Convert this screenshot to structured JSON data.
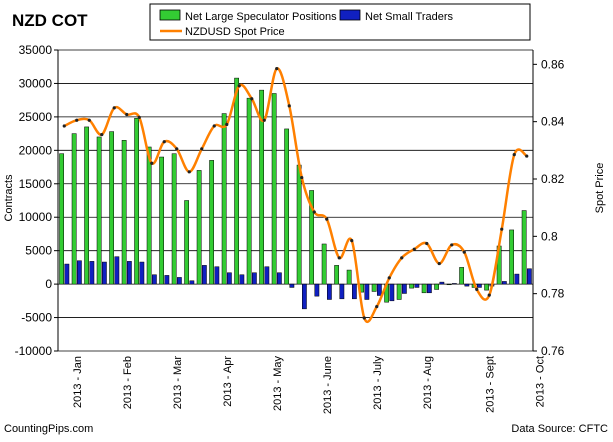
{
  "chart_data": {
    "type": "bar",
    "title": "NZD COT",
    "ylabel_left": "Contracts",
    "ylabel_right": "Spot Price",
    "left_axis": {
      "min": -10000,
      "max": 35000,
      "ticks": [
        "-10000",
        "-5000",
        "0",
        "5000",
        "10000",
        "15000",
        "20000",
        "25000",
        "30000",
        "35000"
      ]
    },
    "right_axis": {
      "min": 0.76,
      "max": 0.865,
      "ticks": [
        "0.76",
        "0.78",
        "0.8",
        "0.82",
        "0.84",
        "0.86"
      ]
    },
    "x_labels": [
      {
        "label": "2013 - Jan",
        "index": 1
      },
      {
        "label": "2013 - Feb",
        "index": 5
      },
      {
        "label": "2013 - Mar",
        "index": 9
      },
      {
        "label": "2013 - Apr",
        "index": 13
      },
      {
        "label": "2013 - May",
        "index": 17
      },
      {
        "label": "2013 - June",
        "index": 21
      },
      {
        "label": "2013 - July",
        "index": 25
      },
      {
        "label": "2013 - Aug",
        "index": 29
      },
      {
        "label": "2013 - Sept",
        "index": 34
      },
      {
        "label": "2013 - Oct",
        "index": 38
      }
    ],
    "series": [
      {
        "name": "Net Large Speculator Positions",
        "color": "#33cc33",
        "values": [
          19500,
          22500,
          23500,
          22000,
          22800,
          21500,
          24800,
          20500,
          19000,
          19500,
          12500,
          17000,
          18500,
          25500,
          30800,
          27800,
          29000,
          28500,
          23200,
          17800,
          14000,
          6000,
          2800,
          2100,
          -1200,
          -1100,
          -2700,
          -2300,
          -600,
          -1300,
          -800,
          -100,
          2500,
          -500,
          -900,
          5700,
          8100,
          11000
        ]
      },
      {
        "name": "Net Small Traders",
        "color": "#1020c0",
        "values": [
          3000,
          3500,
          3400,
          3300,
          4100,
          3400,
          3300,
          1400,
          1300,
          1000,
          500,
          2800,
          2600,
          1700,
          1400,
          1700,
          2600,
          1700,
          -500,
          -3700,
          -1800,
          -2300,
          -2200,
          -2200,
          -2300,
          -1700,
          -2500,
          -1400,
          -500,
          -1300,
          300,
          100,
          -300,
          -500,
          -300,
          400,
          1500,
          2300
        ]
      },
      {
        "name": "NZDUSD Spot Price",
        "color": "#ff8000",
        "type": "line",
        "values": [
          0.8385,
          0.8405,
          0.8405,
          0.8355,
          0.8448,
          0.8425,
          0.8415,
          0.8255,
          0.833,
          0.8305,
          0.8225,
          0.8305,
          0.8385,
          0.839,
          0.8525,
          0.848,
          0.8405,
          0.8585,
          0.8455,
          0.8205,
          0.8085,
          0.806,
          0.7925,
          0.7985,
          0.7715,
          0.7755,
          0.7855,
          0.7925,
          0.7955,
          0.7975,
          0.7905,
          0.797,
          0.7945,
          0.7815,
          0.7795,
          0.8025,
          0.8285,
          0.828
        ]
      }
    ],
    "legend_placement": "top-center",
    "grid": "horizontal"
  },
  "footer": {
    "left": "CountingPips.com",
    "right": "Data Source: CFTC"
  }
}
